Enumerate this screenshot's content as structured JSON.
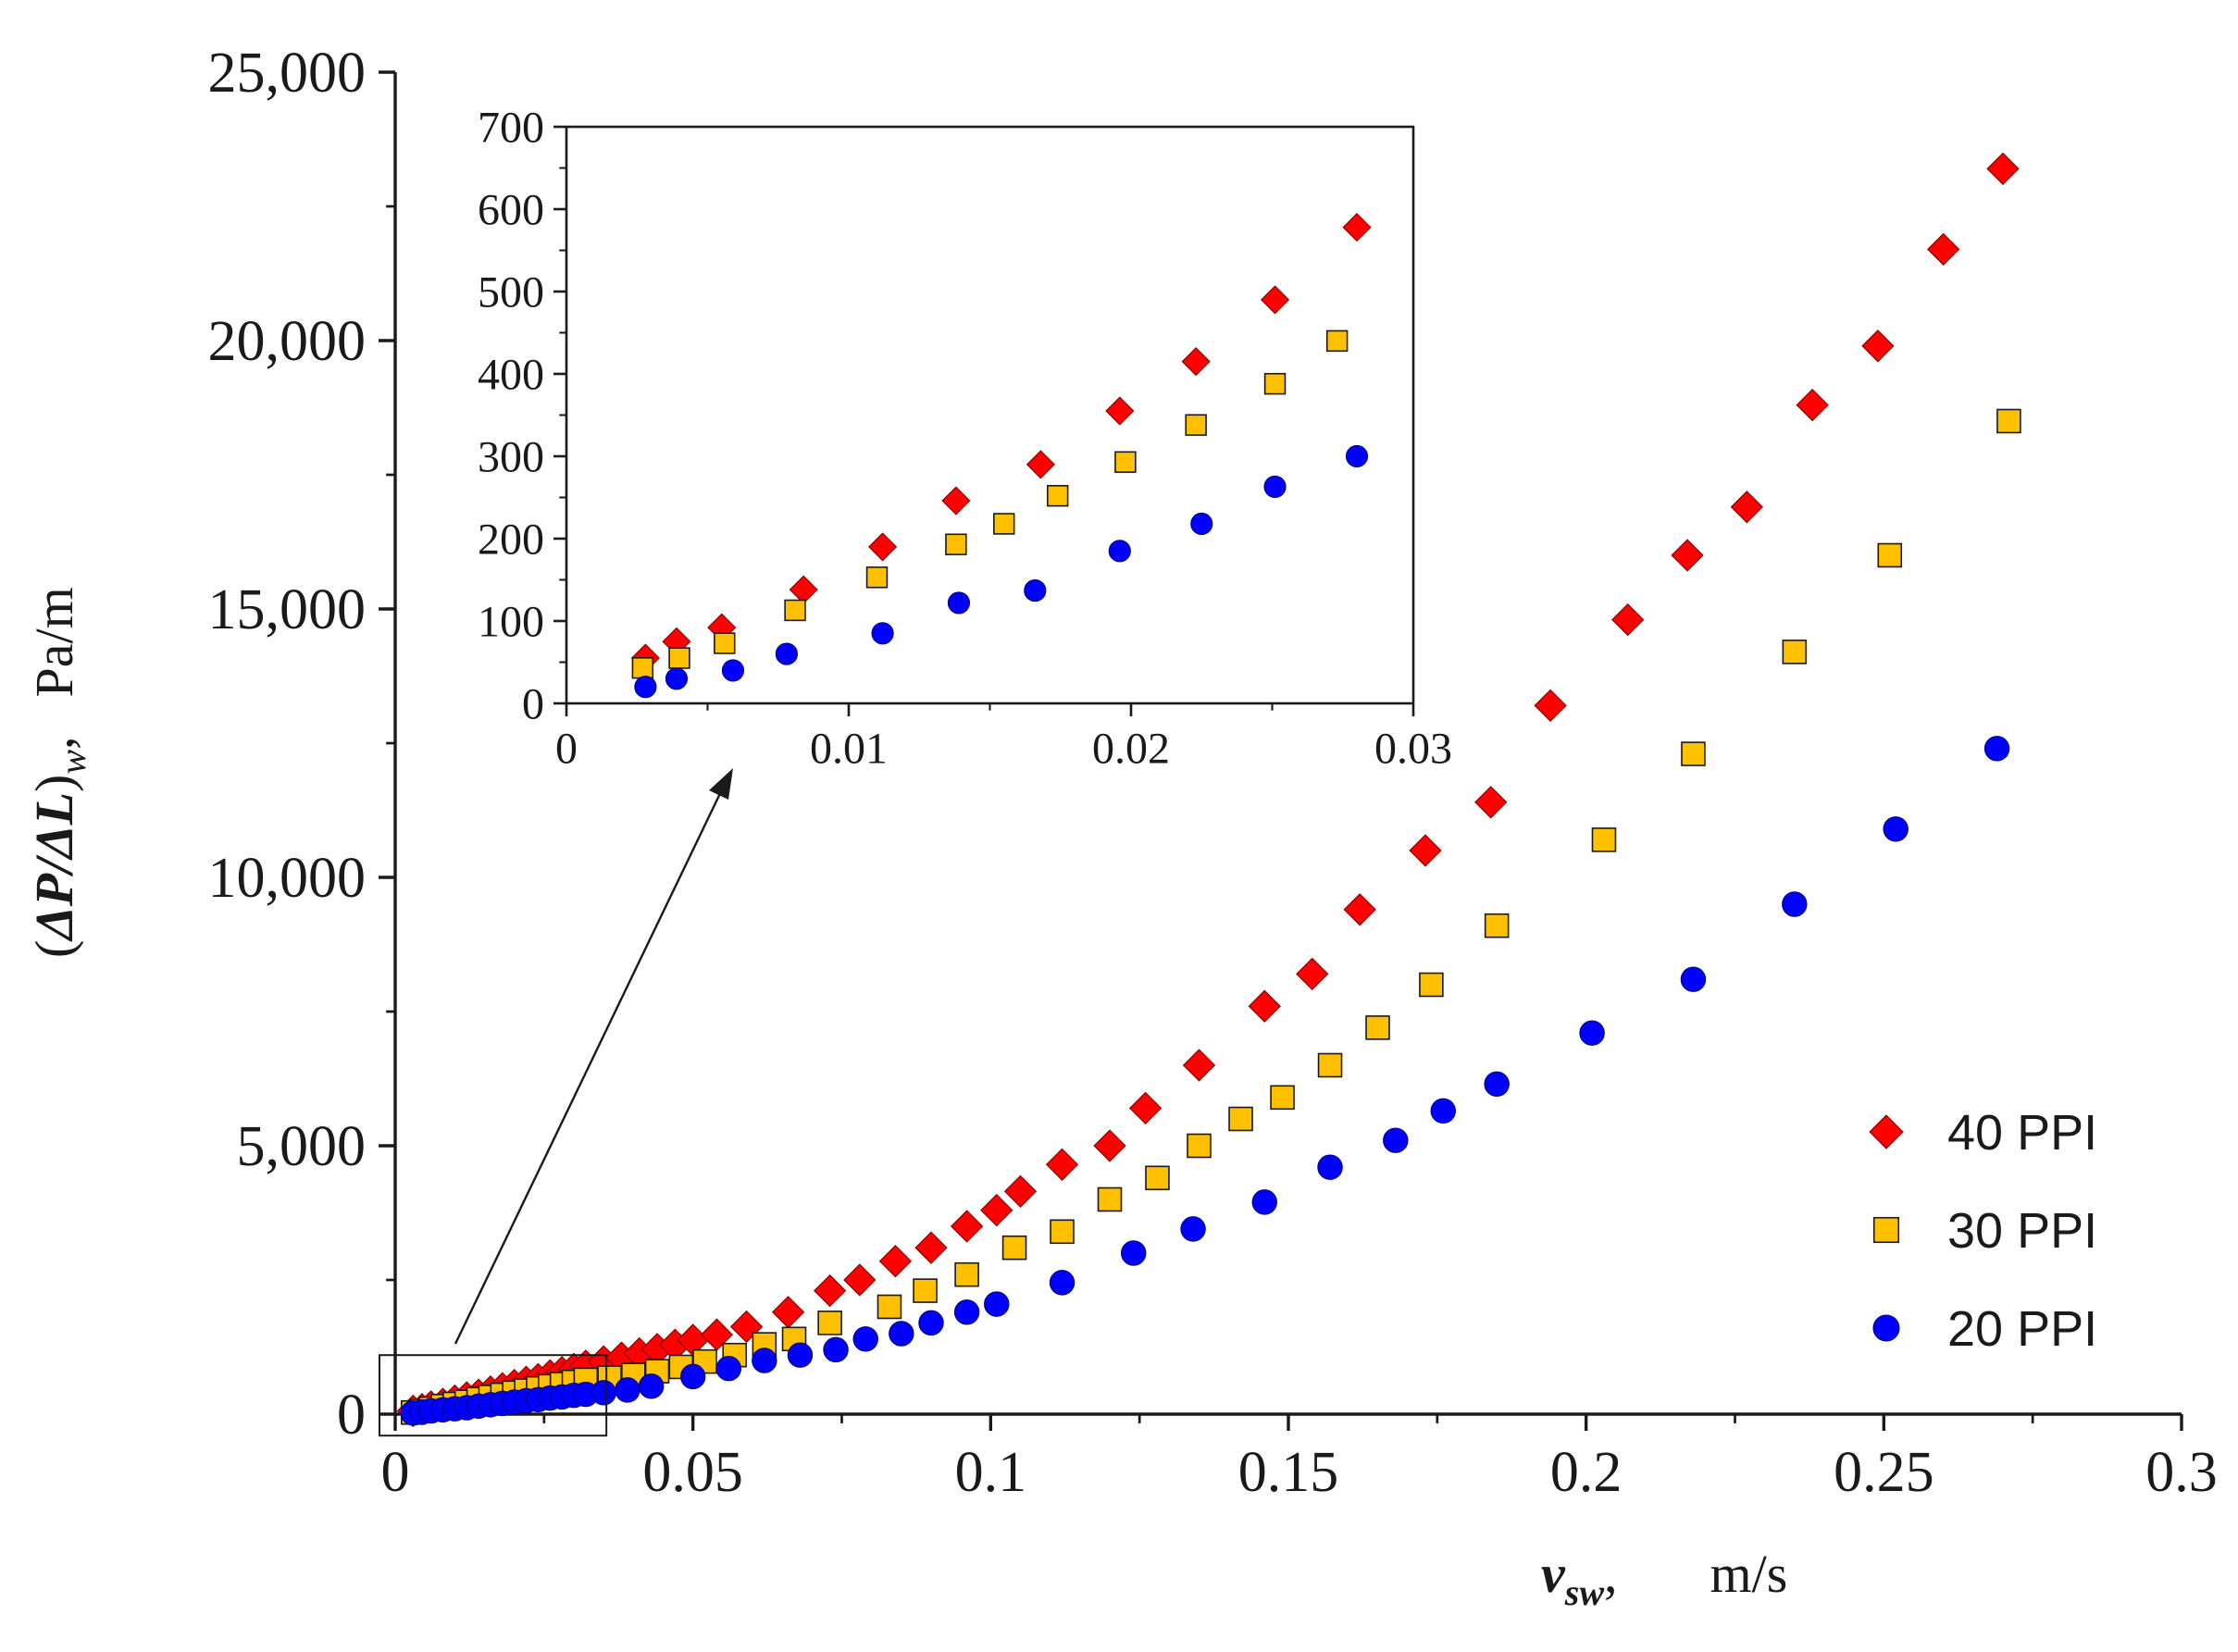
{
  "chart_data": {
    "type": "scatter",
    "main": {
      "xlim": [
        0,
        0.3
      ],
      "ylim": [
        0,
        25000
      ],
      "xticks": [
        0,
        0.05,
        0.1,
        0.15,
        0.2,
        0.25,
        0.3
      ],
      "xtick_labels": [
        "0",
        "0.05",
        "0.1",
        "0.15",
        "0.2",
        "0.25",
        "0.3"
      ],
      "yticks": [
        0,
        5000,
        10000,
        15000,
        20000,
        25000
      ],
      "ytick_labels": [
        "0",
        "5,000",
        "10,000",
        "15,000",
        "20,000",
        "25,000"
      ],
      "xlabel": "v",
      "xlabel_sub": "sw",
      "xlabel_sep": ",",
      "xlabel_unit": "m/s",
      "ylabel_open": "(",
      "ylabel_main": "ΔP/ΔL",
      "ylabel_close": ")",
      "ylabel_sub": "w",
      "ylabel_sep": ",",
      "ylabel_unit": "Pa/m",
      "legend_position": "bottom-right",
      "series": [
        {
          "name": "40 PPI",
          "marker": "diamond",
          "color": "#ff0000",
          "points": [
            [
              0.003,
              60
            ],
            [
              0.0045,
              90
            ],
            [
              0.006,
              140
            ],
            [
              0.008,
              190
            ],
            [
              0.01,
              250
            ],
            [
              0.012,
              310
            ],
            [
              0.014,
              360
            ],
            [
              0.016,
              420
            ],
            [
              0.018,
              480
            ],
            [
              0.02,
              540
            ],
            [
              0.022,
              600
            ],
            [
              0.024,
              650
            ],
            [
              0.026,
              720
            ],
            [
              0.028,
              780
            ],
            [
              0.03,
              840
            ],
            [
              0.032,
              900
            ],
            [
              0.035,
              980
            ],
            [
              0.038,
              1050
            ],
            [
              0.041,
              1130
            ],
            [
              0.044,
              1210
            ],
            [
              0.047,
              1290
            ],
            [
              0.05,
              1380
            ],
            [
              0.054,
              1480
            ],
            [
              0.059,
              1630
            ],
            [
              0.066,
              1900
            ],
            [
              0.073,
              2300
            ],
            [
              0.078,
              2500
            ],
            [
              0.084,
              2850
            ],
            [
              0.09,
              3100
            ],
            [
              0.096,
              3500
            ],
            [
              0.101,
              3800
            ],
            [
              0.105,
              4150
            ],
            [
              0.112,
              4650
            ],
            [
              0.12,
              5000
            ],
            [
              0.126,
              5700
            ],
            [
              0.135,
              6500
            ],
            [
              0.146,
              7600
            ],
            [
              0.154,
              8200
            ],
            [
              0.162,
              9400
            ],
            [
              0.173,
              10500
            ],
            [
              0.184,
              11400
            ],
            [
              0.194,
              13200
            ],
            [
              0.207,
              14800
            ],
            [
              0.217,
              16000
            ],
            [
              0.227,
              16900
            ],
            [
              0.238,
              18800
            ],
            [
              0.249,
              19900
            ],
            [
              0.26,
              21700
            ],
            [
              0.27,
              23200
            ]
          ]
        },
        {
          "name": "30 PPI",
          "marker": "square",
          "color": "#ffc000",
          "points": [
            [
              0.003,
              30
            ],
            [
              0.0045,
              60
            ],
            [
              0.006,
              100
            ],
            [
              0.008,
              150
            ],
            [
              0.01,
              190
            ],
            [
              0.012,
              230
            ],
            [
              0.014,
              280
            ],
            [
              0.016,
              320
            ],
            [
              0.018,
              360
            ],
            [
              0.02,
              400
            ],
            [
              0.022,
              440
            ],
            [
              0.024,
              480
            ],
            [
              0.026,
              520
            ],
            [
              0.028,
              560
            ],
            [
              0.03,
              600
            ],
            [
              0.032,
              640
            ],
            [
              0.036,
              680
            ],
            [
              0.04,
              730
            ],
            [
              0.044,
              800
            ],
            [
              0.048,
              880
            ],
            [
              0.052,
              980
            ],
            [
              0.057,
              1100
            ],
            [
              0.062,
              1300
            ],
            [
              0.067,
              1400
            ],
            [
              0.073,
              1700
            ],
            [
              0.083,
              2000
            ],
            [
              0.089,
              2300
            ],
            [
              0.096,
              2600
            ],
            [
              0.104,
              3100
            ],
            [
              0.112,
              3400
            ],
            [
              0.12,
              4000
            ],
            [
              0.128,
              4400
            ],
            [
              0.135,
              5000
            ],
            [
              0.142,
              5500
            ],
            [
              0.149,
              5900
            ],
            [
              0.157,
              6500
            ],
            [
              0.165,
              7200
            ],
            [
              0.174,
              8000
            ],
            [
              0.185,
              9100
            ],
            [
              0.203,
              10700
            ],
            [
              0.218,
              12300
            ],
            [
              0.235,
              14200
            ],
            [
              0.251,
              16000
            ],
            [
              0.271,
              18500
            ]
          ]
        },
        {
          "name": "20 PPI",
          "marker": "circle",
          "color": "#0000ff",
          "points": [
            [
              0.003,
              20
            ],
            [
              0.0045,
              40
            ],
            [
              0.006,
              60
            ],
            [
              0.008,
              80
            ],
            [
              0.01,
              100
            ],
            [
              0.012,
              120
            ],
            [
              0.014,
              150
            ],
            [
              0.016,
              175
            ],
            [
              0.018,
              200
            ],
            [
              0.02,
              225
            ],
            [
              0.022,
              250
            ],
            [
              0.024,
              270
            ],
            [
              0.026,
              300
            ],
            [
              0.028,
              320
            ],
            [
              0.03,
              350
            ],
            [
              0.032,
              370
            ],
            [
              0.035,
              400
            ],
            [
              0.039,
              450
            ],
            [
              0.043,
              520
            ],
            [
              0.05,
              700
            ],
            [
              0.056,
              850
            ],
            [
              0.062,
              1000
            ],
            [
              0.068,
              1100
            ],
            [
              0.074,
              1200
            ],
            [
              0.079,
              1400
            ],
            [
              0.085,
              1500
            ],
            [
              0.09,
              1700
            ],
            [
              0.096,
              1900
            ],
            [
              0.101,
              2050
            ],
            [
              0.112,
              2450
            ],
            [
              0.124,
              3000
            ],
            [
              0.134,
              3450
            ],
            [
              0.146,
              3950
            ],
            [
              0.157,
              4600
            ],
            [
              0.168,
              5100
            ],
            [
              0.176,
              5650
            ],
            [
              0.185,
              6150
            ],
            [
              0.201,
              7100
            ],
            [
              0.218,
              8100
            ],
            [
              0.235,
              9500
            ],
            [
              0.252,
              10900
            ],
            [
              0.269,
              12400
            ]
          ]
        }
      ]
    },
    "inset": {
      "xlim": [
        0,
        0.03
      ],
      "ylim": [
        0,
        700
      ],
      "xticks": [
        0,
        0.01,
        0.02,
        0.03
      ],
      "xtick_labels": [
        "0",
        "0.01",
        "0.02",
        "0.03"
      ],
      "yticks": [
        0,
        100,
        200,
        300,
        400,
        500,
        600,
        700
      ],
      "ytick_labels": [
        "0",
        "100",
        "200",
        "300",
        "400",
        "500",
        "600",
        "700"
      ],
      "series": [
        {
          "name": "40 PPI",
          "marker": "diamond",
          "color": "#ff0000",
          "points": [
            [
              0.0028,
              55
            ],
            [
              0.0039,
              75
            ],
            [
              0.0055,
              92
            ],
            [
              0.0084,
              138
            ],
            [
              0.0112,
              190
            ],
            [
              0.0138,
              246
            ],
            [
              0.0168,
              290
            ],
            [
              0.0196,
              355
            ],
            [
              0.0223,
              415
            ],
            [
              0.0251,
              490
            ],
            [
              0.028,
              578
            ]
          ]
        },
        {
          "name": "30 PPI",
          "marker": "square",
          "color": "#ffc000",
          "points": [
            [
              0.0027,
              43
            ],
            [
              0.004,
              55
            ],
            [
              0.0056,
              73
            ],
            [
              0.0081,
              113
            ],
            [
              0.011,
              153
            ],
            [
              0.0138,
              193
            ],
            [
              0.0155,
              218
            ],
            [
              0.0174,
              252
            ],
            [
              0.0198,
              293
            ],
            [
              0.0223,
              338
            ],
            [
              0.0251,
              388
            ],
            [
              0.0273,
              440
            ]
          ]
        },
        {
          "name": "20 PPI",
          "marker": "circle",
          "color": "#0000ff",
          "points": [
            [
              0.0028,
              20
            ],
            [
              0.0039,
              30
            ],
            [
              0.0059,
              40
            ],
            [
              0.0078,
              60
            ],
            [
              0.0112,
              85
            ],
            [
              0.0139,
              122
            ],
            [
              0.0166,
              137
            ],
            [
              0.0196,
              185
            ],
            [
              0.0225,
              218
            ],
            [
              0.0251,
              263
            ],
            [
              0.028,
              300
            ]
          ]
        }
      ]
    },
    "zoom_box": {
      "xlim": [
        0,
        0.035
      ],
      "ylim": [
        -400,
        1100
      ]
    }
  }
}
